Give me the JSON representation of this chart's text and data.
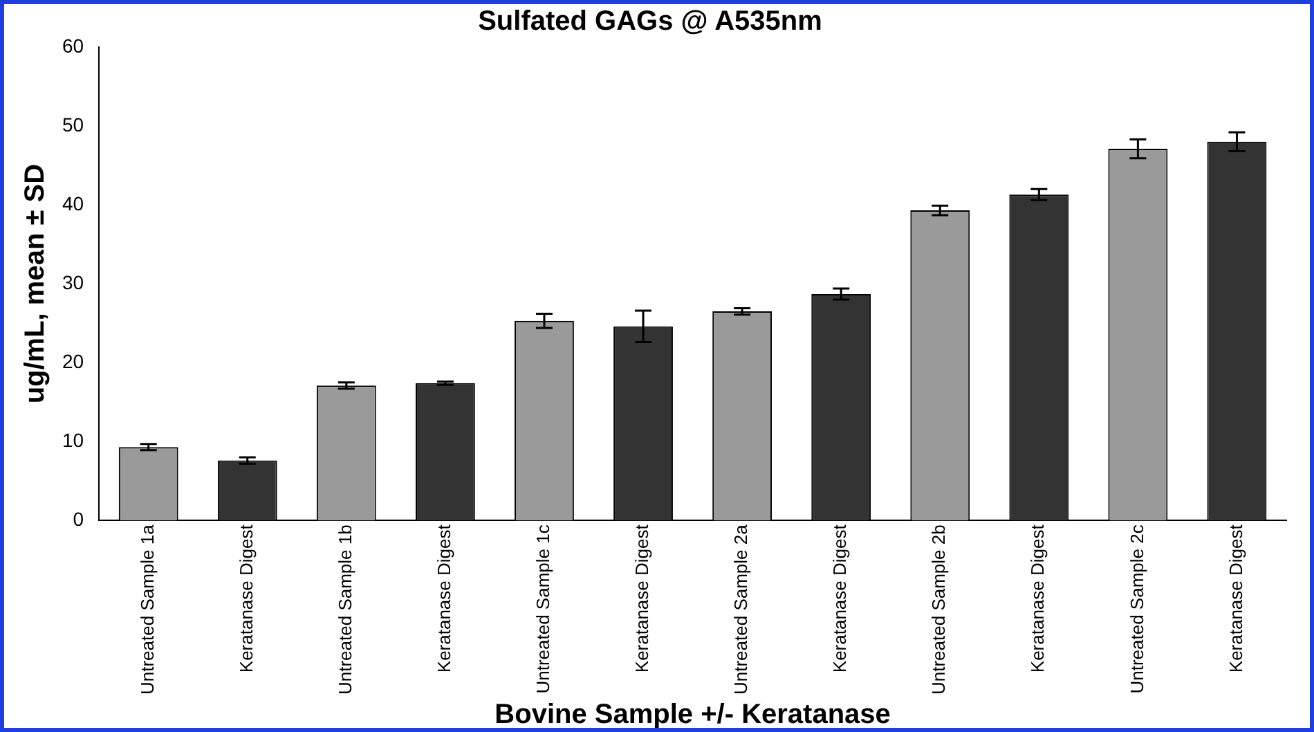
{
  "chart_data": {
    "type": "bar",
    "title": "Sulfated GAGs @ A535nm",
    "xlabel": "Bovine Sample +/- Keratanase",
    "ylabel": "ug/mL, mean ± SD",
    "categories": [
      "Untreated Sample 1a",
      "Keratanase Digest",
      "Untreated Sample 1b",
      "Keratanase Digest",
      "Untreated Sample 1c",
      "Keratanase Digest",
      "Untreated Sample 2a",
      "Keratanase Digest",
      "Untreated Sample 2b",
      "Keratanase Digest",
      "Untreated Sample 2c",
      "Keratanase Digest"
    ],
    "values": [
      9.3,
      7.6,
      17.1,
      17.4,
      25.3,
      24.6,
      26.5,
      28.7,
      39.3,
      41.3,
      47.1,
      48.0
    ],
    "errors": [
      0.4,
      0.4,
      0.4,
      0.2,
      0.9,
      2,
      0.4,
      0.7,
      0.6,
      0.7,
      1.2,
      1.2
    ],
    "colors": [
      "#9a9a9a",
      "#333333",
      "#9a9a9a",
      "#333333",
      "#9a9a9a",
      "#333333",
      "#9a9a9a",
      "#333333",
      "#9a9a9a",
      "#333333",
      "#9a9a9a",
      "#333333"
    ],
    "ylim": [
      0,
      60
    ],
    "yticks": [
      0,
      10,
      20,
      30,
      40,
      50,
      60
    ],
    "grid": false,
    "legend": false
  }
}
